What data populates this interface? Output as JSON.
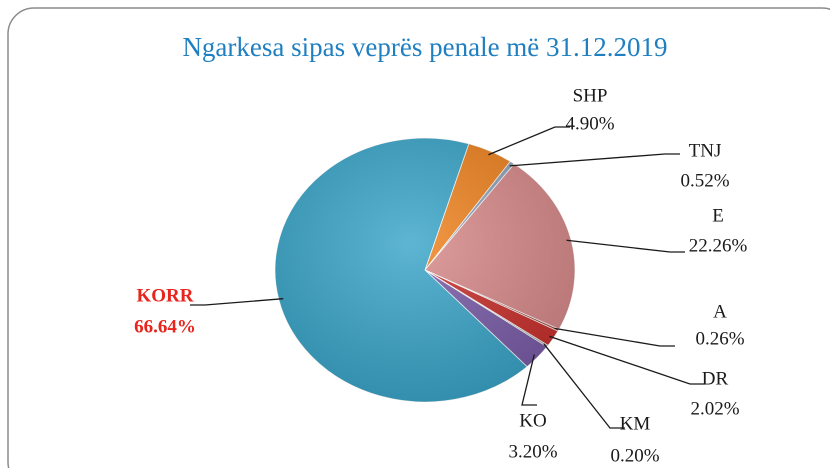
{
  "chart_data": {
    "type": "pie",
    "title": "Ngarkesa sipas veprës penale më 31.12.2019",
    "categories": [
      "SHP",
      "TNJ",
      "E",
      "A",
      "DR",
      "KM",
      "KO",
      "KORR"
    ],
    "values": [
      4.9,
      0.52,
      22.26,
      0.26,
      2.02,
      0.2,
      3.2,
      66.64
    ],
    "value_labels": [
      "4.90%",
      "0.52%",
      "22.26%",
      "0.26%",
      "2.02%",
      "0.20%",
      "3.20%",
      "66.64%"
    ],
    "colors": [
      "#f0831f",
      "#8fa3bb",
      "#d98a8a",
      "#a8453f",
      "#c9302c",
      "#9a9a9a",
      "#7a5ca8",
      "#39a5c9"
    ]
  }
}
